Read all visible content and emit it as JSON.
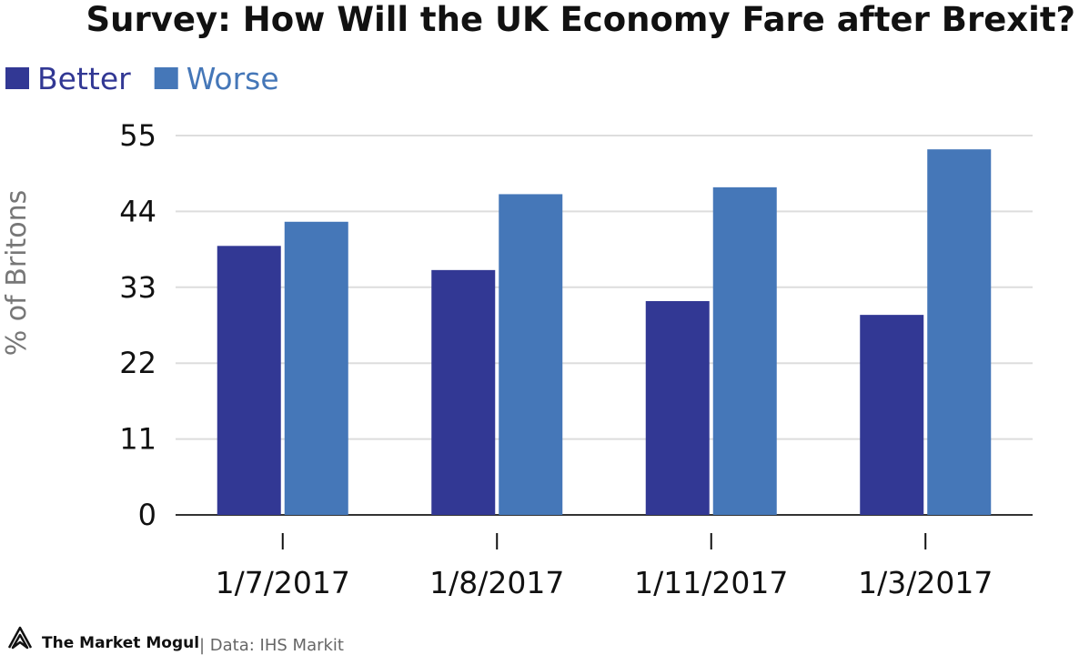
{
  "chart_data": {
    "type": "bar",
    "title": "Survey: How Will the UK Economy Fare after Brexit?",
    "xlabel": "",
    "ylabel": "% of Britons",
    "categories": [
      "1/7/2017",
      "1/8/2017",
      "1/11/2017",
      "1/3/2017"
    ],
    "series": [
      {
        "name": "Better",
        "color": "#323894",
        "values": [
          39,
          35.5,
          31,
          29
        ]
      },
      {
        "name": "Worse",
        "color": "#4577b8",
        "values": [
          42.5,
          46.5,
          47.5,
          53
        ]
      }
    ],
    "yticks": [
      0,
      11,
      22,
      33,
      44,
      55
    ],
    "ylim": [
      0,
      55
    ],
    "grid": true,
    "legend_placement": "top-left"
  },
  "footer": {
    "brand": "The Market Mogul",
    "source": "| Data: IHS Markit"
  }
}
